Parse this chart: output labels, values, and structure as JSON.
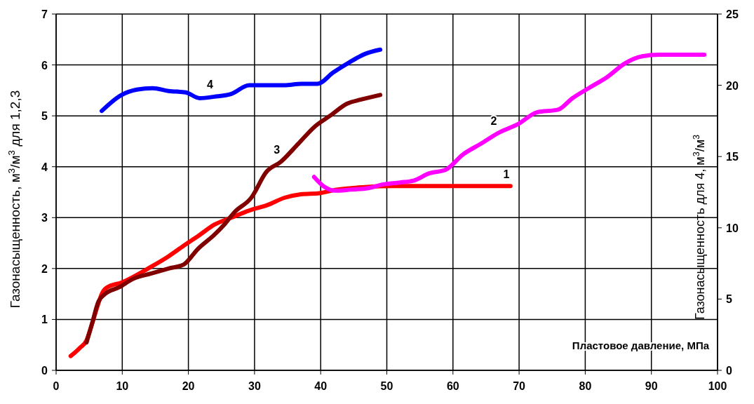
{
  "chart_data": {
    "type": "line",
    "xlabel": "Пластовое давление, МПа",
    "ylabel": "Газонасыщенность, м$^{3}$/м$^{3}$ для 1,2,3",
    "y2label": "Газонасыщенность для 4, м$^{3}$/м$^{3}$",
    "xlim": [
      0,
      100
    ],
    "xticks": [
      0,
      10,
      20,
      30,
      40,
      50,
      60,
      70,
      80,
      90,
      100
    ],
    "ylim": [
      0,
      7
    ],
    "yticks": [
      0,
      1,
      2,
      3,
      4,
      5,
      6,
      7
    ],
    "y2lim": [
      0,
      25
    ],
    "y2ticks": [
      0,
      5,
      10,
      15,
      20,
      25
    ],
    "grid": true,
    "marker": "none",
    "line_style": "solid",
    "series": [
      {
        "color": "#ff0000",
        "x": [
          2.2,
          3.5,
          4.6,
          5.4,
          6.4,
          6.9,
          7.6,
          10,
          14.3,
          17,
          19.3,
          21.7,
          23.9,
          26.5,
          29.2,
          32,
          34.5,
          37,
          39.8,
          42.4,
          46.7,
          51,
          55,
          68.7
        ],
        "values": [
          0.28,
          0.43,
          0.59,
          0.9,
          1.32,
          1.5,
          1.62,
          1.73,
          2.03,
          2.24,
          2.45,
          2.66,
          2.86,
          3.0,
          3.14,
          3.25,
          3.39,
          3.46,
          3.48,
          3.55,
          3.6,
          3.62,
          3.62,
          3.62
        ]
      },
      {
        "color": "#ff00ff",
        "x": [
          39,
          40.5,
          42.2,
          44.5,
          47.2,
          49.3,
          52,
          54.1,
          56.4,
          58.9,
          61.5,
          64.2,
          66.8,
          70,
          72.7,
          75.9,
          78,
          80.6,
          83.3,
          86,
          88.6,
          91.2,
          98
        ],
        "values": [
          3.8,
          3.61,
          3.53,
          3.55,
          3.58,
          3.65,
          3.69,
          3.73,
          3.87,
          3.94,
          4.24,
          4.45,
          4.66,
          4.85,
          5.07,
          5.12,
          5.34,
          5.55,
          5.76,
          6.03,
          6.17,
          6.2,
          6.2
        ]
      },
      {
        "color": "#800000",
        "x": [
          4.6,
          5.4,
          6.4,
          7.4,
          9.5,
          11.7,
          14.3,
          17,
          19.3,
          21.4,
          23.9,
          25.4,
          27,
          29.5,
          31.8,
          34,
          36.6,
          39.2,
          41.4,
          44,
          46.1,
          49
        ],
        "values": [
          0.55,
          0.9,
          1.35,
          1.5,
          1.63,
          1.8,
          1.9,
          2.0,
          2.08,
          2.38,
          2.66,
          2.86,
          3.11,
          3.39,
          3.9,
          4.1,
          4.45,
          4.8,
          5.0,
          5.24,
          5.32,
          5.41
        ]
      },
      {
        "color": "#0000ff",
        "axis": "y2",
        "x": [
          6.9,
          9.8,
          12.2,
          14.6,
          17,
          19.6,
          21.7,
          23.9,
          26.5,
          29.2,
          34.5,
          37.1,
          39.5,
          41.9,
          44.3,
          46.7,
          49
        ],
        "values": [
          18.2,
          19.3,
          19.7,
          19.8,
          19.6,
          19.5,
          19.1,
          19.2,
          19.4,
          20.0,
          20.0,
          20.1,
          20.1,
          20.9,
          21.6,
          22.2,
          22.5
        ]
      }
    ],
    "annotations": [
      {
        "text": "1",
        "x": 68.7,
        "y": 3.62
      },
      {
        "text": "2",
        "x": 66.8,
        "y": 4.66
      },
      {
        "text": "3",
        "x": 34,
        "y": 4.1
      },
      {
        "text": "4",
        "x": 23.9,
        "y": 5.38
      }
    ]
  }
}
